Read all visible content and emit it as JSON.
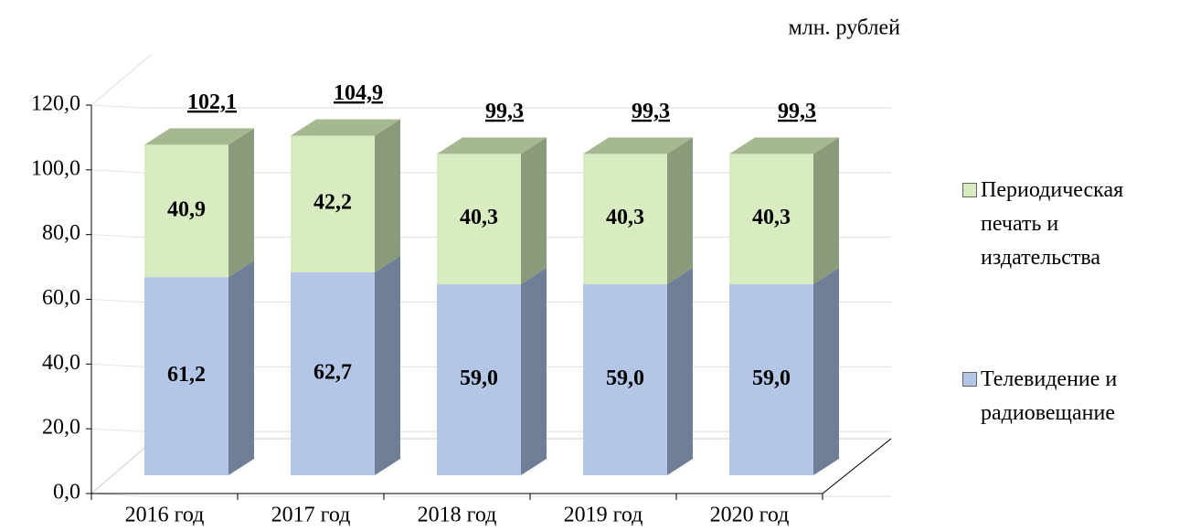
{
  "chart_data": {
    "type": "bar3d_stacked",
    "unit_label": "млн. рублей",
    "categories": [
      "2016 год",
      "2017 год",
      "2018 год",
      "2019 год",
      "2020 год"
    ],
    "series": [
      {
        "name": "Телевидение и радиовещание",
        "color": "#b4c6e7",
        "side_color": "#6f7f98",
        "values": [
          61.2,
          62.7,
          59.0,
          59.0,
          59.0
        ],
        "value_labels": [
          "61,2",
          "62,7",
          "59,0",
          "59,0",
          "59,0"
        ]
      },
      {
        "name": "Периодическая печать и издательства",
        "color": "#d8ebc1",
        "side_color": "#8b9a79",
        "top_color": "#a6b892",
        "values": [
          40.9,
          42.2,
          40.3,
          40.3,
          40.3
        ],
        "value_labels": [
          "40,9",
          "42,2",
          "40,3",
          "40,3",
          "40,3"
        ]
      }
    ],
    "totals": [
      102.1,
      104.9,
      99.3,
      99.3,
      99.3
    ],
    "total_labels": [
      "102,1",
      "104,9",
      "99,3",
      "99,3",
      "99,3"
    ],
    "ylim": [
      0,
      120
    ],
    "yticks": [
      {
        "value": 0,
        "label": "0,0"
      },
      {
        "value": 20,
        "label": "20,0"
      },
      {
        "value": 40,
        "label": "40,0"
      },
      {
        "value": 60,
        "label": "60,0"
      },
      {
        "value": 80,
        "label": "80,0"
      },
      {
        "value": 100,
        "label": "100,0"
      },
      {
        "value": 120,
        "label": "120,0"
      }
    ],
    "grid": true,
    "legend": "right"
  }
}
